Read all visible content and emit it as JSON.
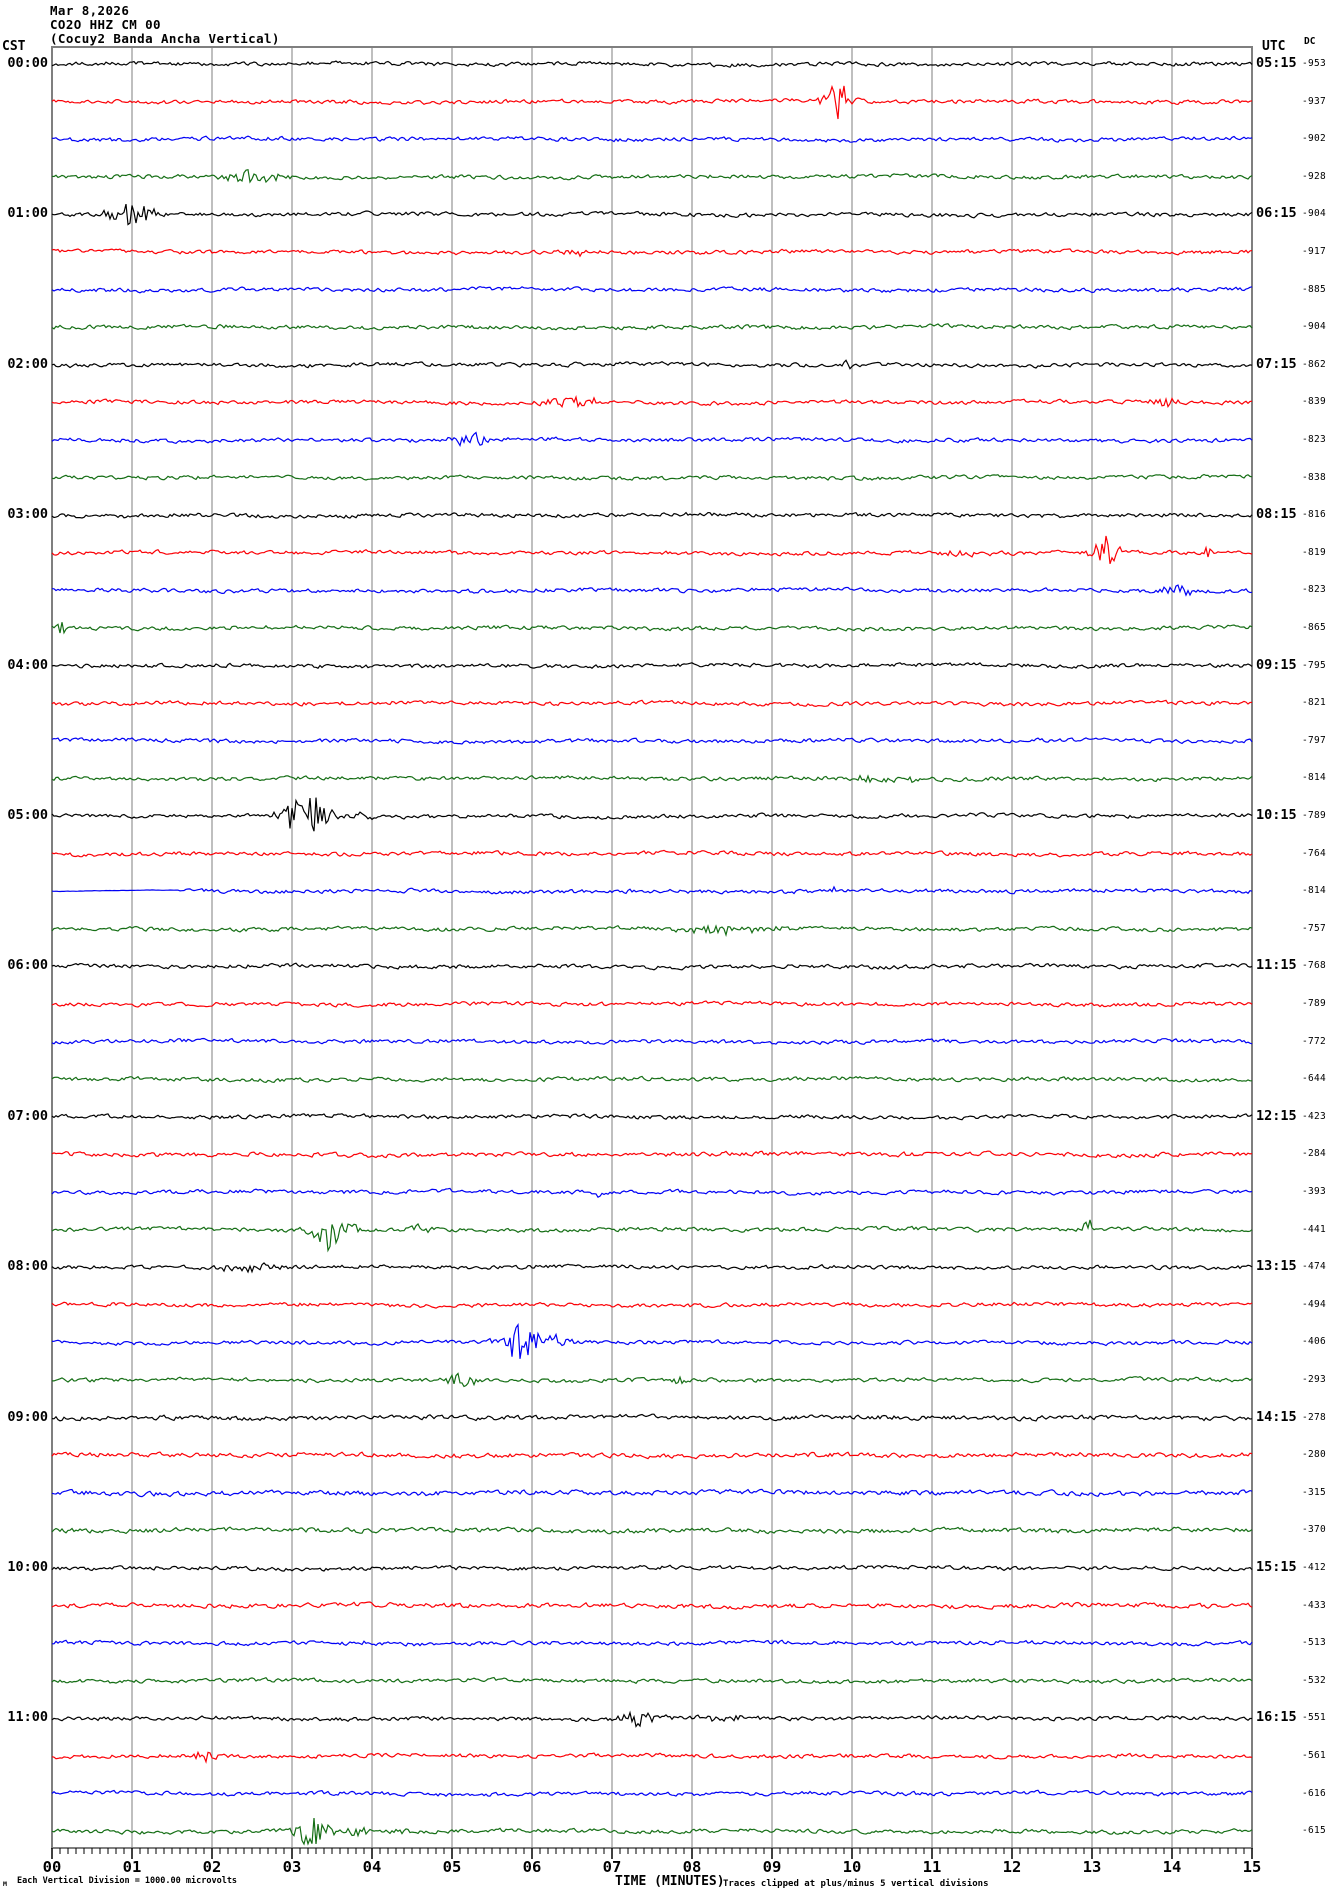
{
  "header": {
    "date": "Mar 8,2026",
    "station": "CO2O HHZ CM 00",
    "description": "(Cocuy2 Banda Ancha Vertical)"
  },
  "axis_left_label": "CST",
  "axis_right_label": "UTC",
  "dc_column_label": "DC",
  "x_axis": {
    "title": "TIME (MINUTES)",
    "tick_labels": [
      "00",
      "01",
      "02",
      "03",
      "04",
      "05",
      "06",
      "07",
      "08",
      "09",
      "10",
      "11",
      "12",
      "13",
      "14",
      "15"
    ],
    "minutes_per_line": 15
  },
  "notes": {
    "clip_note": "Traces clipped at plus/minus 5 vertical divisions",
    "scale_note": "Each Vertical Division = 1000.00 microvolts",
    "scale_marker": "M"
  },
  "colors": {
    "black": "#000000",
    "red": "#fb0006",
    "blue": "#0000f5",
    "green": "#156e15",
    "grid": "#7f7f7f",
    "text": "#000000"
  },
  "chart_data": {
    "type": "line",
    "title": "Helicorder seismogram CO2O HHZ CM 00 (Cocuy2 Banda Ancha Vertical) Mar 8,2026",
    "x_range_minutes": [
      0,
      15
    ],
    "lines_per_hour": 4,
    "line_duration_minutes": 15,
    "rows": [
      {
        "cst": "00:00",
        "utc": "05:15",
        "dc": -953,
        "color": "black",
        "events": []
      },
      {
        "cst": "",
        "utc": "",
        "dc": -937,
        "color": "red",
        "events": [
          {
            "m": 9.85,
            "d": 0.38,
            "a": 19
          }
        ]
      },
      {
        "cst": "",
        "utc": "",
        "dc": -902,
        "color": "blue",
        "events": []
      },
      {
        "cst": "",
        "utc": "",
        "dc": -928,
        "color": "green",
        "events": [
          {
            "m": 2.5,
            "d": 0.8,
            "a": 6
          }
        ]
      },
      {
        "cst": "01:00",
        "utc": "06:15",
        "dc": -904,
        "color": "black",
        "events": [
          {
            "m": 1.0,
            "d": 0.6,
            "a": 13
          }
        ]
      },
      {
        "cst": "",
        "utc": "",
        "dc": -917,
        "color": "red",
        "events": [
          {
            "m": 6.55,
            "d": 0.25,
            "a": 5
          }
        ]
      },
      {
        "cst": "",
        "utc": "",
        "dc": -885,
        "color": "blue",
        "events": []
      },
      {
        "cst": "",
        "utc": "",
        "dc": -904,
        "color": "green",
        "events": []
      },
      {
        "cst": "02:00",
        "utc": "07:15",
        "dc": -862,
        "color": "black",
        "events": [
          {
            "m": 9.95,
            "d": 0.15,
            "a": 3.5
          }
        ]
      },
      {
        "cst": "",
        "utc": "",
        "dc": -839,
        "color": "red",
        "events": [
          {
            "m": 6.5,
            "d": 0.6,
            "a": 8
          },
          {
            "m": 13.9,
            "d": 0.4,
            "a": 5
          }
        ]
      },
      {
        "cst": "",
        "utc": "",
        "dc": -823,
        "color": "blue",
        "events": [
          {
            "m": 5.25,
            "d": 0.45,
            "a": 7
          }
        ]
      },
      {
        "cst": "",
        "utc": "",
        "dc": -838,
        "color": "green",
        "events": []
      },
      {
        "cst": "03:00",
        "utc": "08:15",
        "dc": -816,
        "color": "black",
        "events": [
          {
            "m": 0.85,
            "d": 0.3,
            "a": 2.5
          }
        ]
      },
      {
        "cst": "",
        "utc": "",
        "dc": -819,
        "color": "red",
        "events": [
          {
            "m": 13.15,
            "d": 0.35,
            "a": 15
          },
          {
            "m": 11.2,
            "d": 1.0,
            "a": 2.5
          },
          {
            "m": 14.45,
            "d": 0.1,
            "a": 7
          }
        ]
      },
      {
        "cst": "",
        "utc": "",
        "dc": -823,
        "color": "blue",
        "events": [
          {
            "m": 14.05,
            "d": 0.35,
            "a": 7
          }
        ]
      },
      {
        "cst": "",
        "utc": "",
        "dc": -865,
        "color": "green",
        "events": [
          {
            "m": 0.12,
            "d": 0.1,
            "a": 7
          }
        ]
      },
      {
        "cst": "04:00",
        "utc": "09:15",
        "dc": -795,
        "color": "black",
        "events": []
      },
      {
        "cst": "",
        "utc": "",
        "dc": -821,
        "color": "red",
        "events": []
      },
      {
        "cst": "",
        "utc": "",
        "dc": -797,
        "color": "blue",
        "events": []
      },
      {
        "cst": "",
        "utc": "",
        "dc": -814,
        "color": "green",
        "events": [
          {
            "m": 10.4,
            "d": 1.3,
            "a": 2.8
          }
        ]
      },
      {
        "cst": "05:00",
        "utc": "10:15",
        "dc": -789,
        "color": "black",
        "events": [
          {
            "m": 3.2,
            "d": 0.6,
            "a": 23
          },
          {
            "m": 3.8,
            "d": 0.4,
            "a": 5
          }
        ]
      },
      {
        "cst": "",
        "utc": "",
        "dc": -764,
        "color": "red",
        "events": []
      },
      {
        "cst": "",
        "utc": "",
        "dc": -814,
        "color": "blue",
        "quiet_until": 1.6,
        "events": [
          {
            "m": 9.8,
            "d": 0.15,
            "a": 3
          }
        ]
      },
      {
        "cst": "",
        "utc": "",
        "dc": -757,
        "color": "green",
        "events": [
          {
            "m": 8.4,
            "d": 1.0,
            "a": 5.5
          }
        ]
      },
      {
        "cst": "06:00",
        "utc": "11:15",
        "dc": -768,
        "color": "black",
        "events": []
      },
      {
        "cst": "",
        "utc": "",
        "dc": -789,
        "color": "red",
        "events": []
      },
      {
        "cst": "",
        "utc": "",
        "dc": -772,
        "color": "blue",
        "events": []
      },
      {
        "cst": "",
        "utc": "",
        "dc": -644,
        "color": "green",
        "events": []
      },
      {
        "cst": "07:00",
        "utc": "12:15",
        "dc": -423,
        "color": "black",
        "events": []
      },
      {
        "cst": "",
        "utc": "",
        "dc": -284,
        "color": "red",
        "noise": 1.9,
        "events": []
      },
      {
        "cst": "",
        "utc": "",
        "dc": -393,
        "color": "blue",
        "events": [
          {
            "m": 6.85,
            "d": 0.1,
            "a": 5
          }
        ]
      },
      {
        "cst": "",
        "utc": "",
        "dc": -441,
        "color": "green",
        "events": [
          {
            "m": 3.5,
            "d": 0.5,
            "a": 20
          },
          {
            "m": 4.6,
            "d": 0.3,
            "a": 6
          },
          {
            "m": 12.95,
            "d": 0.12,
            "a": 9
          }
        ]
      },
      {
        "cst": "08:00",
        "utc": "13:15",
        "dc": -474,
        "color": "black",
        "events": [
          {
            "m": 2.5,
            "d": 1.0,
            "a": 3
          }
        ]
      },
      {
        "cst": "",
        "utc": "",
        "dc": -494,
        "color": "red",
        "events": []
      },
      {
        "cst": "",
        "utc": "",
        "dc": -406,
        "color": "blue",
        "events": [
          {
            "m": 5.85,
            "d": 0.45,
            "a": 22
          },
          {
            "m": 6.3,
            "d": 0.35,
            "a": 6
          }
        ]
      },
      {
        "cst": "",
        "utc": "",
        "dc": -293,
        "color": "green",
        "events": [
          {
            "m": 5.1,
            "d": 0.45,
            "a": 7
          },
          {
            "m": 7.85,
            "d": 0.2,
            "a": 5
          }
        ]
      },
      {
        "cst": "09:00",
        "utc": "14:15",
        "dc": -278,
        "color": "black",
        "noise": 2.0,
        "events": []
      },
      {
        "cst": "",
        "utc": "",
        "dc": -280,
        "color": "red",
        "noise": 2.0,
        "events": []
      },
      {
        "cst": "",
        "utc": "",
        "dc": -315,
        "color": "blue",
        "noise": 2.1,
        "events": []
      },
      {
        "cst": "",
        "utc": "",
        "dc": -370,
        "color": "green",
        "noise": 2.0,
        "events": []
      },
      {
        "cst": "10:00",
        "utc": "15:15",
        "dc": -412,
        "color": "black",
        "events": []
      },
      {
        "cst": "",
        "utc": "",
        "dc": -433,
        "color": "red",
        "noise": 1.9,
        "events": []
      },
      {
        "cst": "",
        "utc": "",
        "dc": -513,
        "color": "blue",
        "events": [
          {
            "m": 3.9,
            "d": 0.12,
            "a": 3.5
          }
        ]
      },
      {
        "cst": "",
        "utc": "",
        "dc": -532,
        "color": "green",
        "events": []
      },
      {
        "cst": "11:00",
        "utc": "16:15",
        "dc": -551,
        "color": "black",
        "events": [
          {
            "m": 7.35,
            "d": 0.4,
            "a": 11
          },
          {
            "m": 8.3,
            "d": 1.0,
            "a": 2.5
          }
        ]
      },
      {
        "cst": "",
        "utc": "",
        "dc": -561,
        "color": "red",
        "events": [
          {
            "m": 1.95,
            "d": 0.3,
            "a": 6
          }
        ]
      },
      {
        "cst": "",
        "utc": "",
        "dc": -616,
        "color": "blue",
        "events": []
      },
      {
        "cst": "",
        "utc": "",
        "dc": -615,
        "color": "green",
        "events": [
          {
            "m": 3.25,
            "d": 0.45,
            "a": 17
          },
          {
            "m": 3.85,
            "d": 0.35,
            "a": 6
          },
          {
            "m": 4.3,
            "d": 0.3,
            "a": 3
          }
        ]
      }
    ]
  }
}
